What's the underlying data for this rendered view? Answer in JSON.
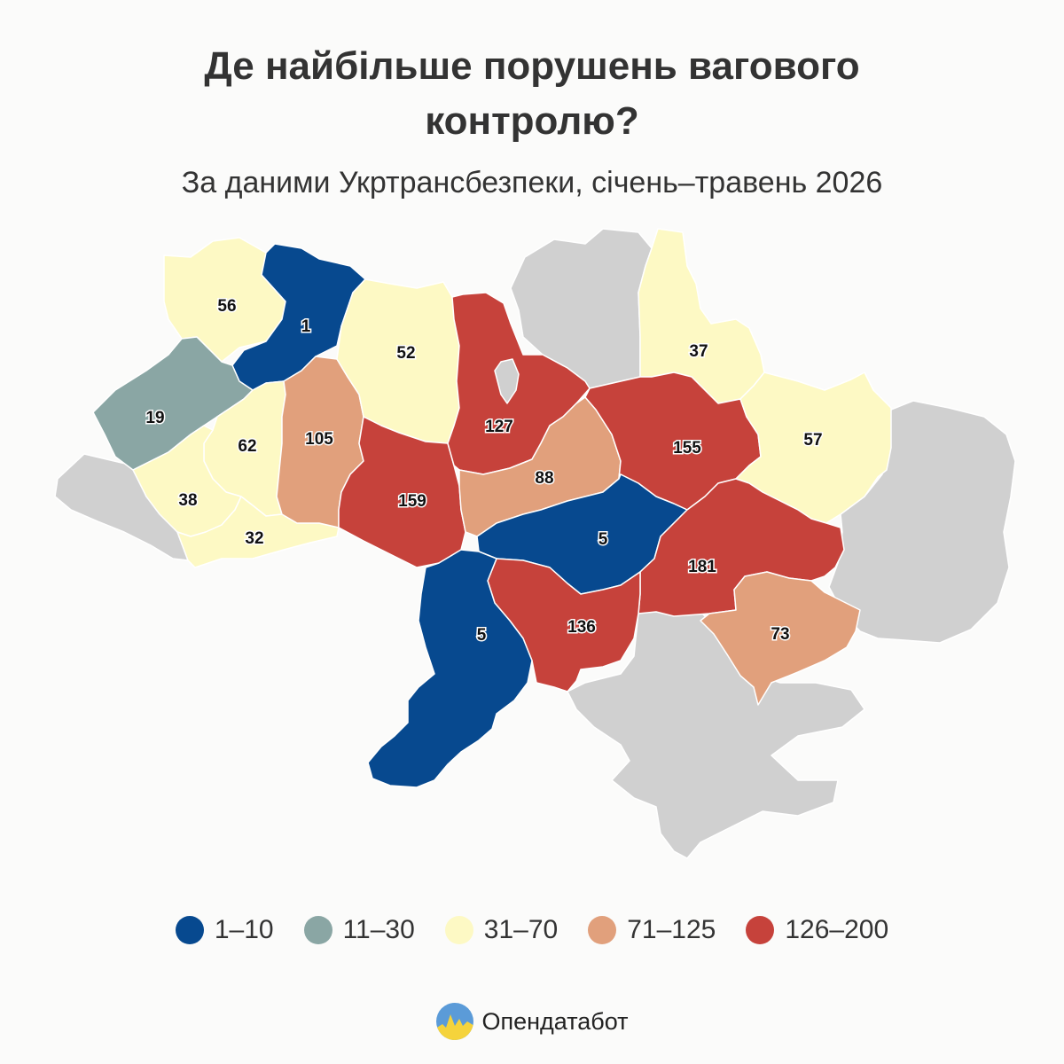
{
  "title_line1": "Де найбільше порушень вагового",
  "title_line2": "контролю?",
  "subtitle": "За даними Укртрансбезпеки, січень–травень 2026",
  "legend": [
    {
      "label": "1–10",
      "color": "#07498f"
    },
    {
      "label": "11–30",
      "color": "#8aa6a4"
    },
    {
      "label": "31–70",
      "color": "#fdf9c4"
    },
    {
      "label": "71–125",
      "color": "#e1a07c"
    },
    {
      "label": "126–200",
      "color": "#c6423b"
    }
  ],
  "no_data_color": "#d0d0d0",
  "regions": [
    {
      "id": "r01",
      "value": 56
    },
    {
      "id": "r02",
      "value": 1
    },
    {
      "id": "r03",
      "value": 19
    },
    {
      "id": "r04",
      "value": 62
    },
    {
      "id": "r05",
      "value": 38
    },
    {
      "id": "r06",
      "value": 32
    },
    {
      "id": "r07",
      "value": 105
    },
    {
      "id": "r08",
      "value": 52
    },
    {
      "id": "r09",
      "value": 159
    },
    {
      "id": "r10",
      "value": 127
    },
    {
      "id": "r11",
      "value": 88
    },
    {
      "id": "r12",
      "value": 37
    },
    {
      "id": "r13",
      "value": 155
    },
    {
      "id": "r14",
      "value": 57
    },
    {
      "id": "r15",
      "value": 5
    },
    {
      "id": "r16",
      "value": 181
    },
    {
      "id": "r17",
      "value": 73
    },
    {
      "id": "r18",
      "value": 136
    },
    {
      "id": "r19",
      "value": 5
    }
  ],
  "brand": {
    "name": "Опендатабот"
  }
}
